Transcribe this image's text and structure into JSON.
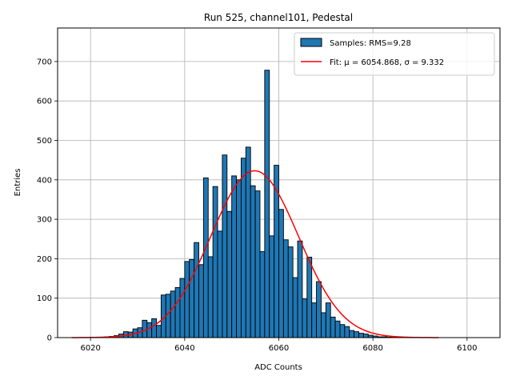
{
  "chart_data": {
    "type": "bar",
    "title": "Run 525, channel101, Pedestal",
    "xlabel": "ADC Counts",
    "ylabel": "Entries",
    "xlim": [
      6013,
      6107
    ],
    "ylim": [
      0,
      785
    ],
    "xticks": [
      6020,
      6040,
      6060,
      6080,
      6100
    ],
    "yticks": [
      0,
      100,
      200,
      300,
      400,
      500,
      600,
      700
    ],
    "grid": true,
    "legend_position": "top-right",
    "bin_width": 1,
    "bin_start": 6023,
    "counts": [
      2,
      3,
      5,
      9,
      15,
      14,
      22,
      25,
      44,
      38,
      48,
      31,
      108,
      110,
      118,
      127,
      150,
      193,
      198,
      241,
      185,
      405,
      205,
      383,
      270,
      463,
      320,
      410,
      400,
      455,
      483,
      385,
      372,
      218,
      678,
      258,
      437,
      325,
      248,
      230,
      152,
      245,
      98,
      204,
      88,
      142,
      63,
      88,
      52,
      42,
      33,
      28,
      18,
      15,
      11,
      9,
      6,
      4,
      2,
      2,
      1,
      1
    ],
    "series": [
      {
        "name": "Samples: RMS=9.28",
        "kind": "histogram",
        "color": "#1f77b4"
      },
      {
        "name": "Fit: μ = 6054.868, σ = 9.332",
        "kind": "line",
        "color": "#ff0000",
        "mu": 6054.868,
        "sigma": 9.332,
        "amplitude": 423,
        "x_range": [
          6016,
          6094
        ]
      }
    ]
  }
}
